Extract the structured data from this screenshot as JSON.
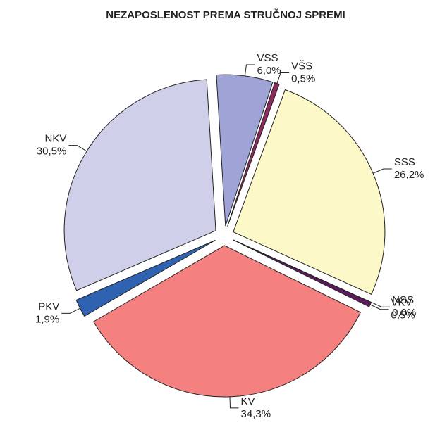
{
  "chart_data": {
    "type": "pie",
    "title": "NEZAPOSLENOST PREMA STRUČNOJ SPREMI",
    "categories": [
      "VSS",
      "VŠS",
      "SSS",
      "NSS",
      "VKV",
      "KV",
      "PKV",
      "NKV"
    ],
    "values": [
      6.0,
      0.5,
      26.2,
      0.0,
      0.5,
      34.3,
      1.9,
      30.5
    ],
    "value_labels": [
      "6,0%",
      "0,5%",
      "26,2%",
      "0,0%",
      "0,5%",
      "34,3%",
      "1,9%",
      "30,5%"
    ],
    "colors": [
      "#9fa3d6",
      "#8e2a5e",
      "#fdf8c8",
      "#c8f0f0",
      "#5c1a5c",
      "#f48080",
      "#2f62b0",
      "#cfcfea"
    ]
  }
}
